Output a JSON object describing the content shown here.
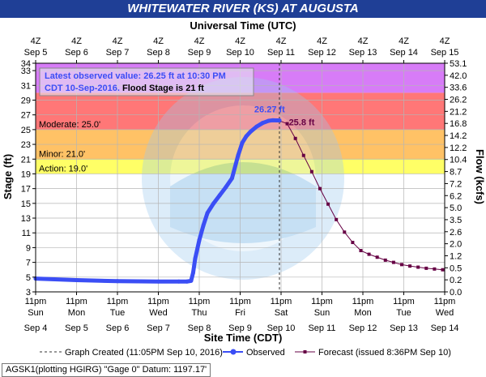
{
  "chart_data": {
    "type": "line",
    "title": "WHITEWATER RIVER (KS) AT AUGUSTA",
    "top_axis_title": "Universal Time (UTC)",
    "bottom_axis_title": "Site Time (CDT)",
    "ylabel": "Stage (ft)",
    "y2label": "Flow (kcfs)",
    "ylim": [
      3,
      34
    ],
    "y_ticks": [
      3,
      5,
      7,
      9,
      11,
      13,
      15,
      17,
      19,
      21,
      23,
      25,
      27,
      29,
      31,
      33,
      34
    ],
    "flow_ticks": [
      {
        "stage": 3,
        "label": "0.0"
      },
      {
        "stage": 5,
        "label": "0.2"
      },
      {
        "stage": 7,
        "label": "0.5"
      },
      {
        "stage": 9,
        "label": "1.2"
      },
      {
        "stage": 11,
        "label": "2.0"
      },
      {
        "stage": 13,
        "label": "2.6"
      },
      {
        "stage": 15,
        "label": "3.5"
      },
      {
        "stage": 17,
        "label": "5.0"
      },
      {
        "stage": 19,
        "label": "6.2"
      },
      {
        "stage": 21,
        "label": "7.2"
      },
      {
        "stage": 23,
        "label": "8.7"
      },
      {
        "stage": 25,
        "label": "10.4"
      },
      {
        "stage": 27,
        "label": "12.2"
      },
      {
        "stage": 29,
        "label": "14.2"
      },
      {
        "stage": 31,
        "label": "16.8"
      },
      {
        "stage": 33,
        "label": "21.2"
      },
      {
        "stage": 35,
        "label": "26.2"
      },
      {
        "stage": 37,
        "label": "33.6"
      },
      {
        "stage": 39,
        "label": "42.0"
      },
      {
        "stage": 41,
        "label": "53.1"
      }
    ],
    "x_top_ticks": [
      {
        "hour": "4Z",
        "date": "Sep 5"
      },
      {
        "hour": "4Z",
        "date": "Sep 6"
      },
      {
        "hour": "4Z",
        "date": "Sep 7"
      },
      {
        "hour": "4Z",
        "date": "Sep 8"
      },
      {
        "hour": "4Z",
        "date": "Sep 9"
      },
      {
        "hour": "4Z",
        "date": "Sep 10"
      },
      {
        "hour": "4Z",
        "date": "Sep 11"
      },
      {
        "hour": "4Z",
        "date": "Sep 12"
      },
      {
        "hour": "4Z",
        "date": "Sep 13"
      },
      {
        "hour": "4Z",
        "date": "Sep 14"
      },
      {
        "hour": "4Z",
        "date": "Sep 15"
      }
    ],
    "x_bottom_ticks": [
      {
        "time": "11pm",
        "day": "Sun",
        "date": "Sep 4"
      },
      {
        "time": "11pm",
        "day": "Mon",
        "date": "Sep 5"
      },
      {
        "time": "11pm",
        "day": "Tue",
        "date": "Sep 6"
      },
      {
        "time": "11pm",
        "day": "Wed",
        "date": "Sep 7"
      },
      {
        "time": "11pm",
        "day": "Thu",
        "date": "Sep 8"
      },
      {
        "time": "11pm",
        "day": "Fri",
        "date": "Sep 9"
      },
      {
        "time": "11pm",
        "day": "Sat",
        "date": "Sep 10"
      },
      {
        "time": "11pm",
        "day": "Sun",
        "date": "Sep 11"
      },
      {
        "time": "11pm",
        "day": "Mon",
        "date": "Sep 12"
      },
      {
        "time": "11pm",
        "day": "Tue",
        "date": "Sep 13"
      },
      {
        "time": "11pm",
        "day": "Wed",
        "date": "Sep 14"
      }
    ],
    "x_range_days": [
      0,
      10
    ],
    "flood_categories": [
      {
        "name": "Action",
        "label": "Action: 19.0'",
        "from": 19,
        "to": 21,
        "color": "#ffff66"
      },
      {
        "name": "Minor",
        "label": "Minor: 21.0'",
        "from": 21,
        "to": 25,
        "color": "#ffc266"
      },
      {
        "name": "Moderate",
        "label": "Moderate: 25.0'",
        "from": 25,
        "to": 30,
        "color": "#ff7777"
      },
      {
        "name": "Major",
        "label": "",
        "from": 30,
        "to": 34,
        "color": "#d77cf7"
      }
    ],
    "observed": {
      "name": "Observed",
      "color": "#3b4ef5",
      "x_days": [
        0,
        1,
        2,
        3,
        3.5,
        3.7,
        3.8,
        3.85,
        3.9,
        4.0,
        4.1,
        4.2,
        4.35,
        4.5,
        4.65,
        4.8,
        4.95,
        5.05,
        5.15,
        5.25,
        5.4,
        5.55,
        5.7,
        5.8,
        5.9,
        5.96
      ],
      "y": [
        4.8,
        4.6,
        4.45,
        4.4,
        4.4,
        4.4,
        4.5,
        5.6,
        7.5,
        10.0,
        12.0,
        13.7,
        15.0,
        16.1,
        17.2,
        18.4,
        21.5,
        23.2,
        24.1,
        24.7,
        25.4,
        25.9,
        26.2,
        26.27,
        26.25,
        26.25
      ]
    },
    "forecast": {
      "name": "Forecast (issued 8:36PM Sep 10)",
      "color": "#660044",
      "x_days": [
        5.96,
        6.15,
        6.35,
        6.55,
        6.75,
        6.95,
        7.15,
        7.35,
        7.55,
        7.75,
        7.95,
        8.15,
        8.35,
        8.55,
        8.75,
        8.95,
        9.15,
        9.35,
        9.55,
        9.75,
        9.95
      ],
      "y": [
        26.2,
        25.8,
        23.8,
        21.5,
        19.3,
        17.0,
        14.9,
        12.8,
        11.1,
        9.7,
        8.6,
        8.1,
        7.7,
        7.3,
        7.0,
        6.7,
        6.5,
        6.35,
        6.2,
        6.1,
        6.0
      ]
    },
    "annotations": {
      "peak_observed": "26.27 ft",
      "peak_forecast": "25.8 ft"
    },
    "info_box": {
      "line1": "Latest observed value: 26.25 ft at 10:30 PM",
      "line2_date": "CDT 10-Sep-2016.",
      "line2_flood": " Flood Stage is 21 ft"
    },
    "graph_created_day": 5.96,
    "legend": {
      "created": "Graph Created (11:05PM Sep 10, 2016)",
      "observed": "Observed",
      "forecast": "Forecast (issued 8:36PM Sep 10)"
    },
    "footer": "AGSK1(plotting HGIRG) \"Gage 0\" Datum: 1197.17'"
  }
}
